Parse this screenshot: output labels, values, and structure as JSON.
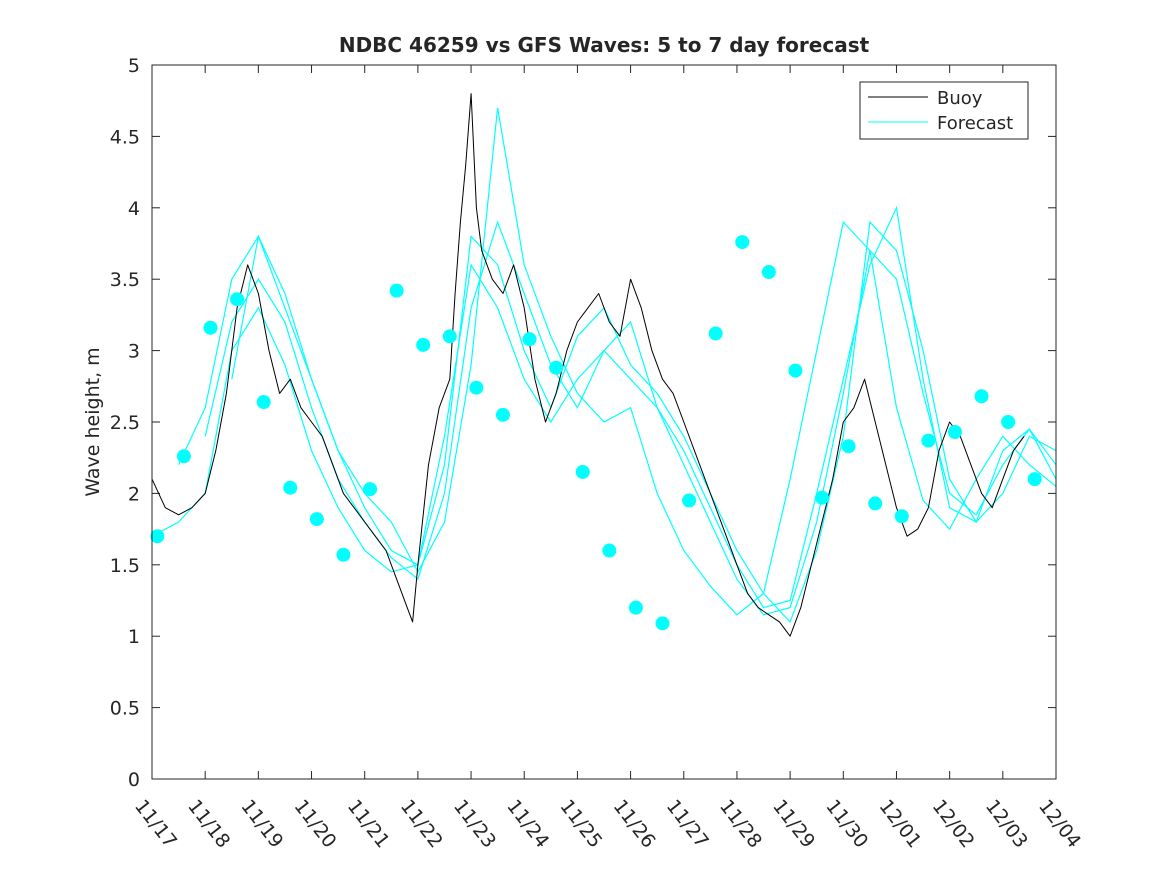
{
  "chart_data": {
    "type": "line",
    "title": "NDBC 46259 vs GFS Waves: 5 to 7 day forecast",
    "xlabel": "",
    "ylabel": "Wave height, m",
    "xlim": [
      0,
      17
    ],
    "ylim": [
      0,
      5
    ],
    "yticks": [
      0,
      0.5,
      1,
      1.5,
      2,
      2.5,
      3,
      3.5,
      4,
      4.5,
      5
    ],
    "ytick_labels": [
      "0",
      "0.5",
      "1",
      "1.5",
      "2",
      "2.5",
      "3",
      "3.5",
      "4",
      "4.5",
      "5"
    ],
    "xtick_labels": [
      "11/17",
      "11/18",
      "11/19",
      "11/20",
      "11/21",
      "11/22",
      "11/23",
      "11/24",
      "11/25",
      "11/26",
      "11/27",
      "11/28",
      "11/29",
      "11/30",
      "12/01",
      "12/02",
      "12/03",
      "12/04"
    ],
    "grid": false,
    "legend": {
      "position": "top-right",
      "entries": [
        "Buoy",
        "Forecast"
      ]
    },
    "colors": {
      "buoy": "#000000",
      "forecast": "#00ffff",
      "axes": "#262626"
    },
    "buoy": {
      "name": "Buoy",
      "x": [
        0.0,
        0.25,
        0.5,
        0.75,
        1.0,
        1.2,
        1.4,
        1.6,
        1.8,
        2.0,
        2.2,
        2.4,
        2.6,
        2.8,
        3.0,
        3.2,
        3.4,
        3.6,
        3.8,
        4.0,
        4.2,
        4.4,
        4.6,
        4.8,
        4.9,
        5.0,
        5.2,
        5.4,
        5.6,
        5.7,
        5.8,
        5.9,
        6.0,
        6.1,
        6.2,
        6.4,
        6.6,
        6.8,
        7.0,
        7.2,
        7.4,
        7.6,
        7.8,
        8.0,
        8.2,
        8.4,
        8.6,
        8.8,
        9.0,
        9.2,
        9.4,
        9.6,
        9.8,
        10.0,
        10.2,
        10.4,
        10.6,
        10.8,
        11.0,
        11.2,
        11.4,
        11.6,
        11.8,
        12.0,
        12.2,
        12.4,
        12.6,
        12.8,
        12.9,
        13.0,
        13.2,
        13.4,
        13.6,
        13.8,
        14.0,
        14.2,
        14.4,
        14.6,
        14.8,
        15.0,
        15.2,
        15.4,
        15.6,
        15.8,
        16.0,
        16.2,
        16.4
      ],
      "values": [
        2.1,
        1.9,
        1.85,
        1.9,
        2.0,
        2.3,
        2.7,
        3.3,
        3.6,
        3.4,
        3.0,
        2.7,
        2.8,
        2.6,
        2.5,
        2.4,
        2.2,
        2.0,
        1.9,
        1.8,
        1.7,
        1.6,
        1.4,
        1.2,
        1.1,
        1.5,
        2.2,
        2.6,
        2.8,
        3.4,
        3.9,
        4.3,
        4.8,
        4.0,
        3.7,
        3.5,
        3.4,
        3.6,
        3.3,
        2.8,
        2.5,
        2.7,
        3.0,
        3.2,
        3.3,
        3.4,
        3.2,
        3.1,
        3.5,
        3.3,
        3.0,
        2.8,
        2.7,
        2.5,
        2.3,
        2.1,
        1.9,
        1.7,
        1.5,
        1.3,
        1.2,
        1.15,
        1.1,
        1.0,
        1.2,
        1.5,
        1.8,
        2.1,
        2.3,
        2.5,
        2.6,
        2.8,
        2.5,
        2.2,
        1.9,
        1.7,
        1.75,
        1.9,
        2.3,
        2.5,
        2.4,
        2.2,
        2.0,
        1.9,
        2.1,
        2.3,
        2.4
      ]
    },
    "forecast": [
      {
        "name": "Forecast",
        "x": [
          0.0,
          0.5,
          1.0,
          1.5,
          2.0,
          2.5,
          3.0,
          3.5,
          4.0,
          4.5,
          5.0,
          5.5,
          6.0,
          6.5,
          7.0,
          7.5,
          8.0,
          8.5,
          9.0,
          9.5,
          10.0,
          10.5,
          11.0,
          11.5,
          12.0,
          12.5,
          13.0,
          13.5,
          14.0,
          14.5,
          15.0,
          15.5,
          16.0,
          16.5,
          17.0
        ],
        "values": [
          1.7,
          1.8,
          2.0,
          3.0,
          3.3,
          2.9,
          2.3,
          1.9,
          1.6,
          1.45,
          1.5,
          2.4,
          3.6,
          3.3,
          2.8,
          2.5,
          2.8,
          3.0,
          2.8,
          2.6,
          2.2,
          1.8,
          1.4,
          1.15,
          1.2,
          1.8,
          2.7,
          3.7,
          3.5,
          2.7,
          2.0,
          1.85,
          2.2,
          2.45,
          2.2
        ]
      },
      {
        "name": "Forecast",
        "x": [
          0.5,
          1.0,
          1.5,
          2.0,
          2.5,
          3.0,
          3.5,
          4.0,
          4.5,
          5.0,
          5.5,
          6.0,
          6.5,
          7.0,
          7.5,
          8.0,
          8.5,
          9.0,
          9.5,
          10.0,
          10.5,
          11.0,
          11.5,
          12.0,
          12.5,
          13.0,
          13.5,
          14.0,
          14.5,
          15.0,
          15.5,
          16.0,
          16.5,
          17.0
        ],
        "values": [
          2.2,
          2.6,
          3.5,
          3.8,
          3.3,
          2.8,
          2.3,
          1.9,
          1.6,
          1.5,
          2.2,
          3.8,
          3.6,
          3.0,
          2.6,
          3.1,
          3.3,
          2.9,
          2.7,
          2.4,
          2.0,
          1.6,
          1.3,
          1.1,
          1.6,
          2.4,
          3.9,
          3.7,
          3.0,
          2.1,
          1.8,
          2.0,
          2.4,
          2.3
        ]
      },
      {
        "name": "Forecast",
        "x": [
          1.0,
          1.5,
          2.0,
          2.5,
          3.0,
          3.5,
          4.0,
          4.5,
          5.0,
          5.5,
          6.0,
          6.5,
          7.0,
          7.5,
          8.0,
          8.5,
          9.0,
          9.5,
          10.0,
          10.5,
          11.0,
          11.5,
          12.0,
          12.5,
          13.0,
          13.5,
          14.0,
          14.5,
          15.0,
          15.5,
          16.0,
          16.5,
          17.0
        ],
        "values": [
          2.4,
          3.2,
          3.5,
          3.2,
          2.6,
          2.1,
          1.8,
          1.55,
          1.4,
          2.0,
          3.3,
          3.9,
          3.4,
          2.9,
          2.6,
          3.0,
          3.2,
          2.6,
          2.3,
          1.9,
          1.5,
          1.2,
          1.25,
          2.0,
          2.8,
          3.6,
          4.0,
          2.8,
          1.9,
          1.8,
          2.3,
          2.45,
          2.1
        ]
      },
      {
        "name": "Forecast",
        "x": [
          1.5,
          2.0,
          2.5,
          3.0,
          3.5,
          4.0,
          4.5,
          5.0,
          5.5,
          6.0,
          6.5,
          7.0,
          7.5,
          8.0,
          8.5,
          9.0,
          9.5,
          10.0,
          10.5,
          11.0,
          11.5,
          12.0,
          12.5,
          13.0,
          13.5,
          14.0,
          14.5,
          15.0,
          15.5,
          16.0,
          16.5,
          17.0
        ],
        "values": [
          2.8,
          3.8,
          3.4,
          2.8,
          2.3,
          2.0,
          1.8,
          1.45,
          1.8,
          2.9,
          4.7,
          3.6,
          3.1,
          2.7,
          2.5,
          2.6,
          2.0,
          1.6,
          1.35,
          1.15,
          1.3,
          2.1,
          3.0,
          3.9,
          3.7,
          2.6,
          1.95,
          1.75,
          2.1,
          2.4,
          2.2,
          2.05
        ]
      }
    ],
    "forecast_markers": {
      "name": "Forecast",
      "x": [
        0.1,
        0.6,
        1.1,
        1.6,
        2.1,
        2.6,
        3.1,
        3.6,
        4.1,
        4.6,
        5.1,
        5.6,
        6.1,
        6.6,
        7.1,
        7.6,
        8.1,
        8.6,
        9.1,
        9.6,
        10.1,
        10.6,
        11.1,
        11.6,
        12.1,
        12.6,
        13.1,
        13.6,
        14.1,
        14.6,
        15.1,
        15.6,
        16.1,
        16.6
      ],
      "values": [
        1.7,
        2.26,
        3.16,
        3.36,
        2.64,
        2.04,
        1.82,
        1.57,
        2.03,
        3.42,
        3.04,
        3.1,
        2.74,
        2.55,
        3.08,
        2.88,
        2.15,
        1.6,
        1.2,
        1.09,
        1.95,
        3.12,
        3.76,
        3.55,
        2.86,
        1.97,
        2.33,
        1.93,
        1.84,
        2.37,
        2.43,
        2.68,
        2.5,
        2.1
      ]
    }
  }
}
